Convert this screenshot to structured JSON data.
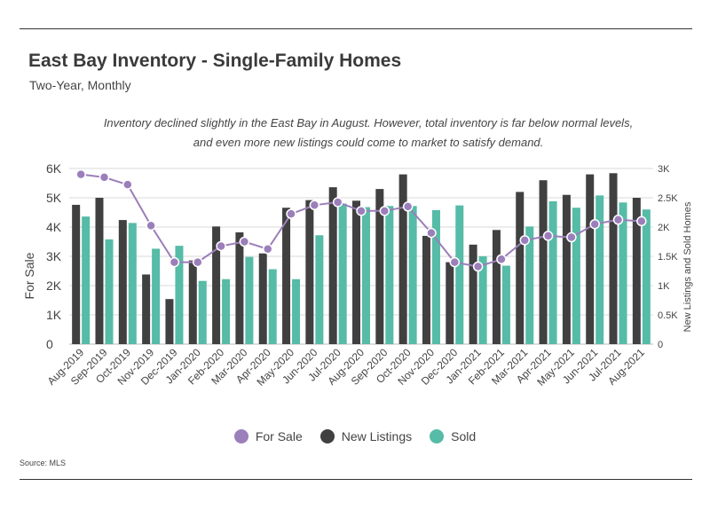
{
  "title": "East Bay Inventory - Single-Family Homes",
  "subtitle": "Two-Year, Monthly",
  "note_line1": "Inventory declined slightly in the East Bay in August. However, total inventory is far below normal levels,",
  "note_line2": "and even more new listings could come to market to satisfy demand.",
  "source": "Source:  MLS",
  "colors": {
    "for_sale": "#9b7fba",
    "new_listings": "#404040",
    "sold": "#56bba7",
    "grid": "#d9d9d9"
  },
  "chart_data": {
    "type": "bar",
    "categories": [
      "Aug-2019",
      "Sep-2019",
      "Oct-2019",
      "Nov-2019",
      "Dec-2019",
      "Jan-2020",
      "Feb-2020",
      "Mar-2020",
      "Apr-2020",
      "May-2020",
      "Jun-2020",
      "Jul-2020",
      "Aug-2020",
      "Sep-2020",
      "Oct-2020",
      "Nov-2020",
      "Dec-2020",
      "Jan-2021",
      "Feb-2021",
      "Mar-2021",
      "Apr-2021",
      "May-2021",
      "Jun-2021",
      "Jul-2021",
      "Aug-2021"
    ],
    "left_axis": {
      "label": "For Sale",
      "ticks": [
        "0",
        "1K",
        "2K",
        "3K",
        "4K",
        "5K",
        "6K"
      ],
      "ylim": [
        0,
        6000
      ]
    },
    "right_axis": {
      "label": "New Listings and Sold Homes",
      "ticks": [
        "0",
        "0.5K",
        "1K",
        "1.5K",
        "2K",
        "2.5K",
        "3K"
      ],
      "ylim": [
        0,
        3000
      ]
    },
    "series": [
      {
        "name": "New Listings",
        "type": "bar",
        "axis": "right",
        "values": [
          2380,
          2500,
          2120,
          1190,
          770,
          1430,
          2010,
          1910,
          1550,
          2330,
          2460,
          2680,
          2450,
          2650,
          2900,
          1850,
          1400,
          1700,
          1950,
          2600,
          2800,
          2550,
          2900,
          2920,
          2500
        ]
      },
      {
        "name": "Sold",
        "type": "bar",
        "axis": "right",
        "values": [
          2180,
          1790,
          2070,
          1630,
          1680,
          1080,
          1110,
          1490,
          1280,
          1110,
          1860,
          2400,
          2340,
          2360,
          2360,
          2290,
          2370,
          1500,
          1340,
          2010,
          2440,
          2330,
          2540,
          2420,
          2300
        ]
      },
      {
        "name": "For Sale",
        "type": "line",
        "axis": "left",
        "values": [
          5800,
          5700,
          5450,
          4050,
          2800,
          2800,
          3350,
          3500,
          3250,
          4450,
          4750,
          4850,
          4550,
          4550,
          4700,
          3800,
          2800,
          2650,
          2900,
          3550,
          3700,
          3650,
          4100,
          4250,
          4200
        ]
      }
    ],
    "legend": [
      "For Sale",
      "New Listings",
      "Sold"
    ],
    "legend_position": "bottom-center",
    "grid": true
  }
}
